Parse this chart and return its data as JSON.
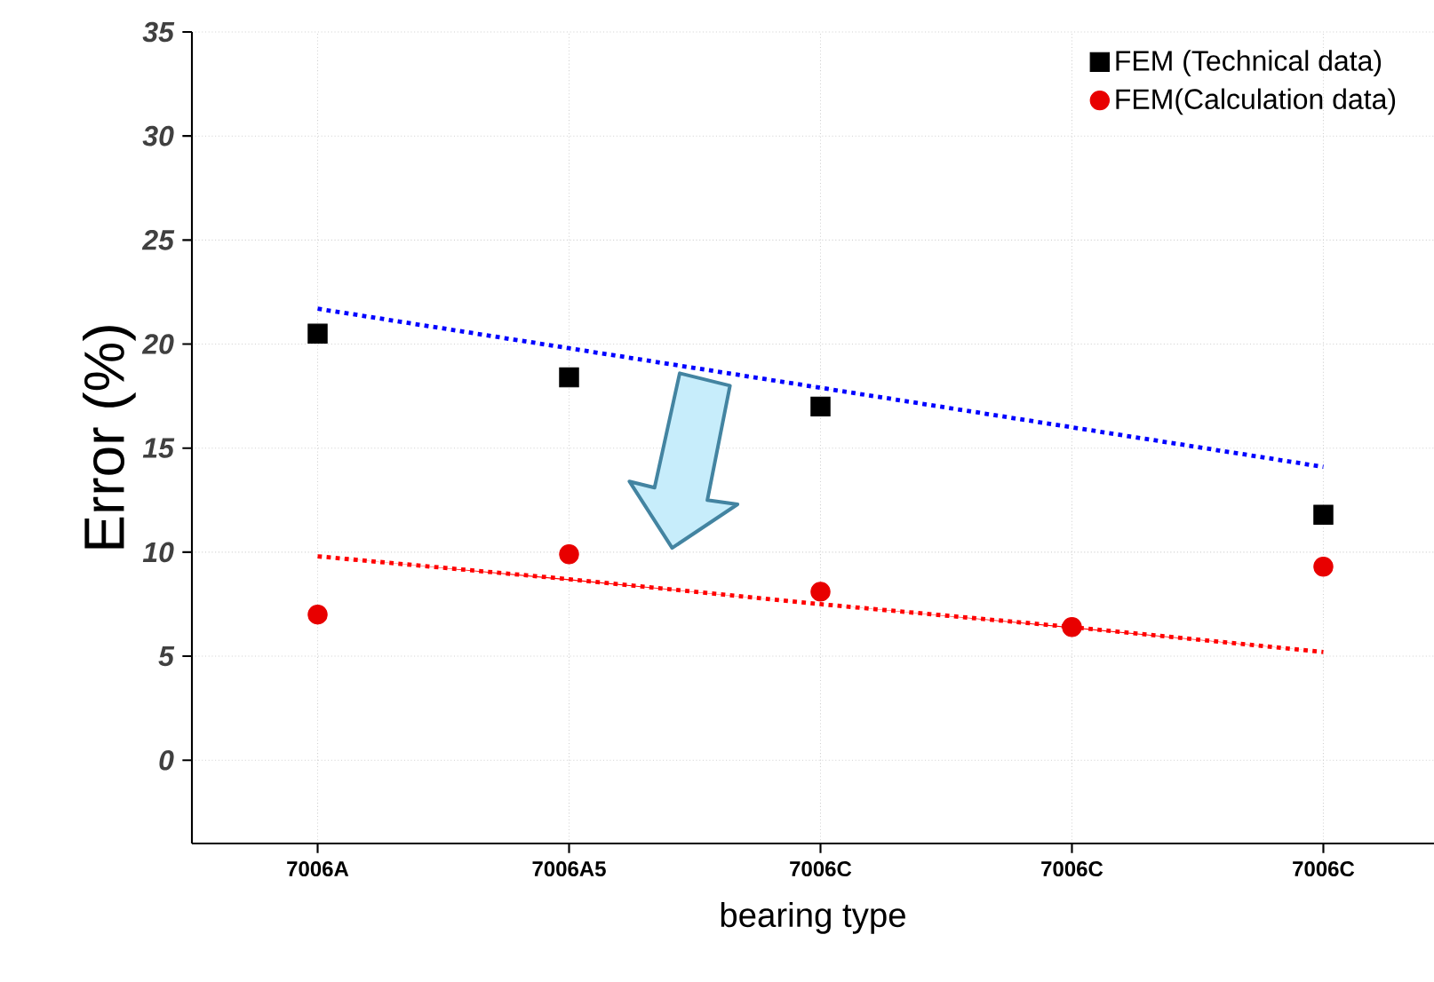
{
  "chart_data": {
    "type": "scatter",
    "xlabel": "bearing type",
    "ylabel": "Error (%)",
    "categories": [
      "7006A",
      "7006A5",
      "7006C",
      "7006C",
      "7006C"
    ],
    "series": [
      {
        "name": "FEM (Technical data)",
        "color": "#000000",
        "marker": "square",
        "values": [
          20.5,
          18.4,
          17.0,
          null,
          11.8
        ]
      },
      {
        "name": "FEM(Calculation data)",
        "color": "#e80000",
        "marker": "circle",
        "values": [
          7.0,
          9.9,
          8.1,
          6.4,
          9.3
        ]
      },
      {
        "type": "line",
        "color": "#0000ff",
        "line_style": "dotted",
        "marker": "none",
        "values": [
          21.7,
          19.8,
          17.9,
          16.0,
          14.1
        ]
      },
      {
        "type": "line",
        "color": "#ff0000",
        "line_style": "dotted",
        "marker": "none",
        "values": [
          9.8,
          8.7,
          7.5,
          6.4,
          5.2
        ]
      }
    ],
    "ylim": [
      -4,
      35
    ],
    "yticks": [
      0,
      5,
      10,
      15,
      20,
      25,
      30,
      35
    ],
    "grid": true,
    "legend": "top right"
  }
}
